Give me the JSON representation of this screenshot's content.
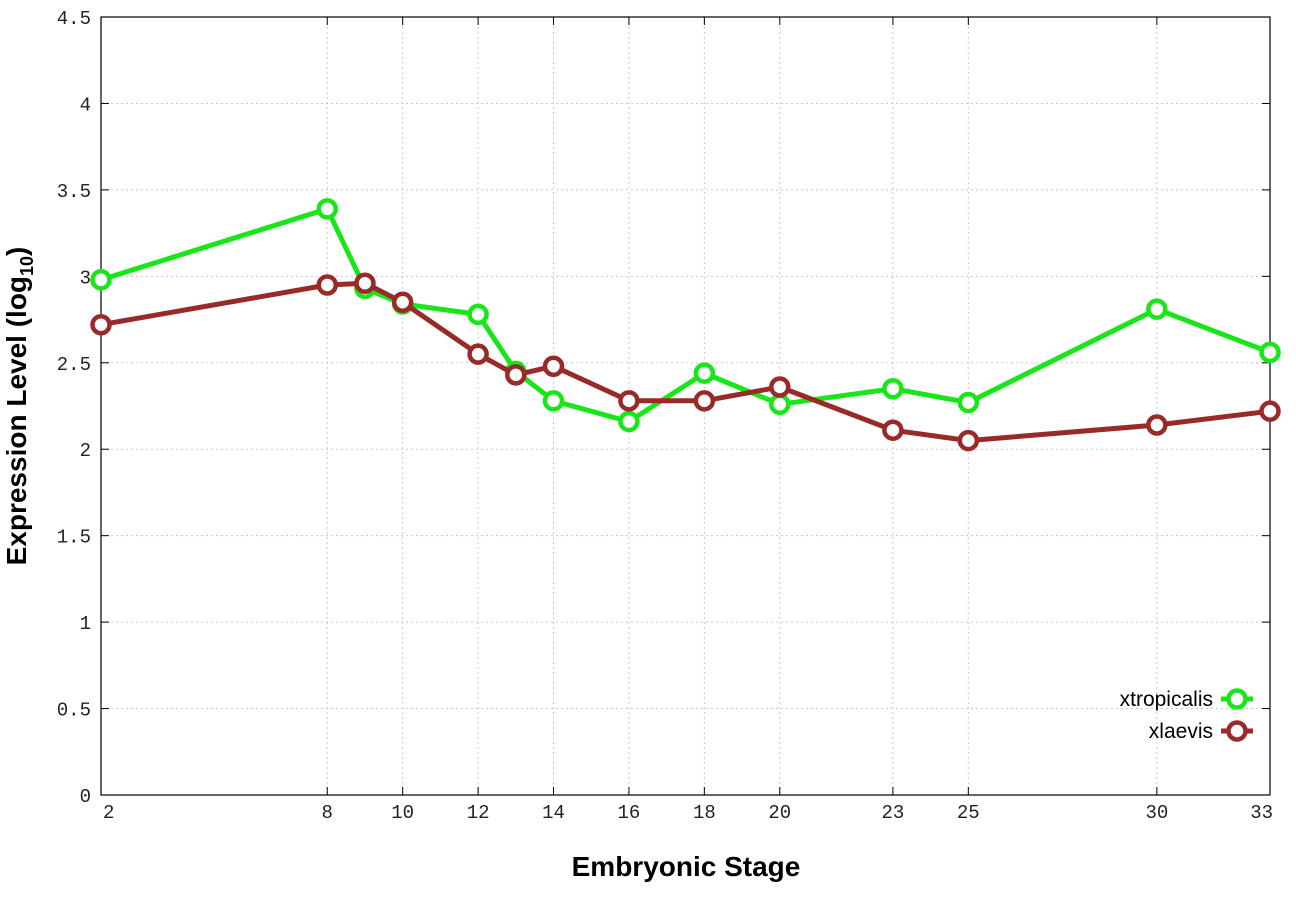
{
  "chart_data": {
    "type": "line",
    "xlabel": "Embryonic Stage",
    "ylabel_main": "Expression Level (log",
    "ylabel_sub": "10",
    "ylabel_end": ")",
    "ylim": [
      0,
      4.5
    ],
    "xlim": [
      2,
      33
    ],
    "x_ticks": [
      2,
      8,
      10,
      12,
      14,
      16,
      18,
      20,
      23,
      25,
      30,
      33
    ],
    "y_ticks": [
      0,
      0.5,
      1,
      1.5,
      2,
      2.5,
      3,
      3.5,
      4,
      4.5
    ],
    "y_tick_labels": [
      "0",
      "0.5",
      "1",
      "1.5",
      "2",
      "2.5",
      "3",
      "3.5",
      "4",
      "4.5"
    ],
    "grid": true,
    "legend_position": "bottom-right",
    "series": [
      {
        "name": "xtropicalis",
        "color": "#19e619",
        "x": [
          2,
          8,
          9,
          10,
          12,
          13,
          14,
          16,
          18,
          20,
          23,
          25,
          30,
          33
        ],
        "values": [
          2.98,
          3.39,
          2.93,
          2.84,
          2.78,
          2.45,
          2.28,
          2.16,
          2.44,
          2.26,
          2.35,
          2.27,
          2.81,
          2.56
        ]
      },
      {
        "name": "xlaevis",
        "color": "#992a2a",
        "x": [
          2,
          8,
          9,
          10,
          12,
          13,
          14,
          16,
          18,
          20,
          23,
          25,
          30,
          33
        ],
        "values": [
          2.72,
          2.95,
          2.96,
          2.85,
          2.55,
          2.43,
          2.48,
          2.28,
          2.28,
          2.36,
          2.11,
          2.05,
          2.14,
          2.22
        ]
      }
    ]
  }
}
